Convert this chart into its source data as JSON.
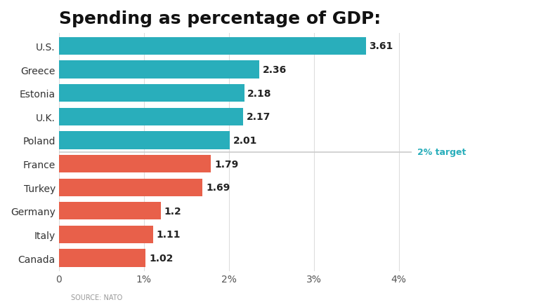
{
  "title": "Spending as percentage of GDP:",
  "source": "SOURCE: NATO",
  "categories": [
    "Canada",
    "Italy",
    "Germany",
    "Turkey",
    "France",
    "Poland",
    "U.K.",
    "Estonia",
    "Greece",
    "U.S."
  ],
  "values": [
    1.02,
    1.11,
    1.2,
    1.69,
    1.79,
    2.01,
    2.17,
    2.18,
    2.36,
    3.61
  ],
  "colors": [
    "#E8604A",
    "#E8604A",
    "#E8604A",
    "#E8604A",
    "#E8604A",
    "#29AEBB",
    "#29AEBB",
    "#29AEBB",
    "#29AEBB",
    "#29AEBB"
  ],
  "labels": [
    "1.02",
    "1.11",
    "1.2",
    "1.69",
    "1.79",
    "2.01",
    "2.17",
    "2.18",
    "2.36",
    "3.61"
  ],
  "target_line": 2.0,
  "target_label": "2% target",
  "target_color": "#29AEBB",
  "xlim": [
    0,
    4.15
  ],
  "xticks": [
    0,
    1,
    2,
    3,
    4
  ],
  "xticklabels": [
    "0",
    "1%",
    "2%",
    "3%",
    "4%"
  ],
  "background_color": "#FFFFFF",
  "title_fontsize": 18,
  "label_fontsize": 10,
  "tick_fontsize": 10,
  "source_fontsize": 7,
  "bar_height": 0.75
}
